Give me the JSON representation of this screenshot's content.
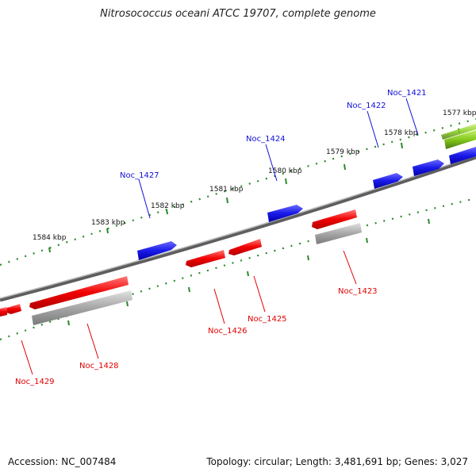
{
  "title": "Nitrosococcus oceani ATCC 19707, complete genome",
  "footer": {
    "accession": "Accession: NC_007484",
    "summary": "Topology: circular; Length: 3,481,691 bp; Genes: 3,027"
  },
  "tick_labels": [
    "1577 kbp",
    "1578 kbp",
    "1579 kbp",
    "1580 kbp",
    "1581 kbp",
    "1582 kbp",
    "1583 kbp",
    "1584 kbp"
  ],
  "forward_genes": [
    "Noc_1421",
    "Noc_1422",
    "Noc_1424",
    "Noc_1427"
  ],
  "reverse_genes": [
    "Noc_1423",
    "Noc_1425",
    "Noc_1426",
    "Noc_1428",
    "Noc_1429"
  ],
  "colors": {
    "forward": "#1010d8",
    "reverse": "#e00000",
    "rna": "#9a9a9a",
    "green": "#7fc31c",
    "backbone": "#7a7a7a",
    "tick": "#2a8a2a"
  }
}
